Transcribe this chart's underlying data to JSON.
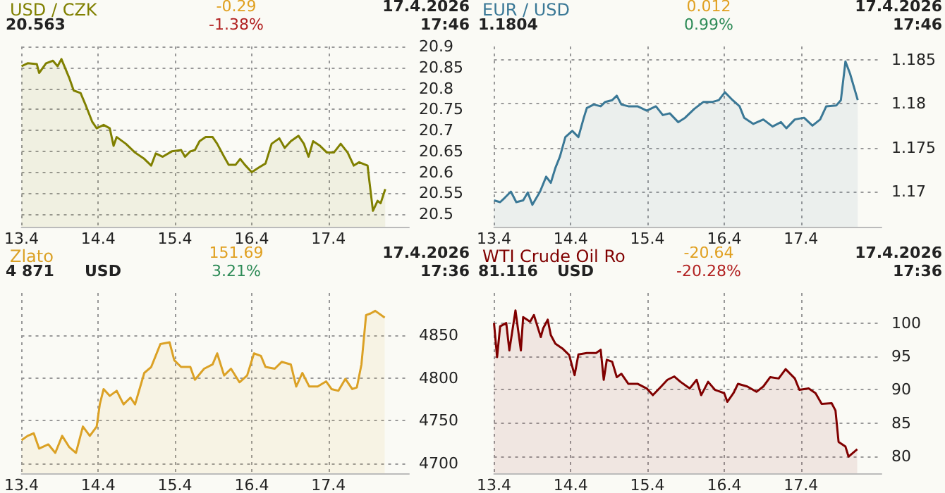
{
  "chart_data": [
    {
      "type": "area",
      "title": "USD / CZK",
      "annotations": [
        "20.563",
        "-0.29",
        "-1.38%",
        "17.4.2026",
        "17:46"
      ],
      "grid": true,
      "xlim": [
        "2026-04-13T00:00",
        "2026-04-18T01:12"
      ],
      "xticks": [
        {
          "value": "2026-04-13",
          "label": "13.4"
        },
        {
          "value": "2026-04-14",
          "label": "14.4"
        },
        {
          "value": "2026-04-15",
          "label": "15.4"
        },
        {
          "value": "2026-04-16",
          "label": "16.4"
        },
        {
          "value": "2026-04-17",
          "label": "17.4"
        }
      ],
      "ylim": [
        20.47,
        20.9
      ],
      "yticks": [
        20.5,
        20.55,
        20.6,
        20.65,
        20.7,
        20.75,
        20.8,
        20.85,
        20.9
      ],
      "series": [
        {
          "color": "#808000",
          "x": [
            "2026-04-13T00:00",
            "2026-04-13T01:55",
            "2026-04-13T04:48",
            "2026-04-13T05:31",
            "2026-04-13T07:41",
            "2026-04-13T09:50",
            "2026-04-13T11:17",
            "2026-04-13T12:29",
            "2026-04-13T14:53",
            "2026-04-13T16:19",
            "2026-04-13T18:29",
            "2026-04-13T19:55",
            "2026-04-13T22:05",
            "2026-04-13T23:31",
            "2026-04-14T01:41",
            "2026-04-14T03:36",
            "2026-04-14T04:48",
            "2026-04-14T05:46",
            "2026-04-14T08:38",
            "2026-04-14T11:31",
            "2026-04-14T14:24",
            "2026-04-14T16:34",
            "2026-04-14T18:00",
            "2026-04-14T20:10",
            "2026-04-14T23:02",
            "2026-04-15T01:55",
            "2026-04-15T03:07",
            "2026-04-15T04:48",
            "2026-04-15T06:14",
            "2026-04-15T07:41",
            "2026-04-15T09:36",
            "2026-04-15T11:46",
            "2026-04-15T13:12",
            "2026-04-15T15:22",
            "2026-04-15T16:48",
            "2026-04-15T18:58",
            "2026-04-15T20:24",
            "2026-04-15T21:50",
            "2026-04-16T00:00",
            "2026-04-16T02:10",
            "2026-04-16T04:19",
            "2026-04-16T06:14",
            "2026-04-16T08:38",
            "2026-04-16T10:19",
            "2026-04-16T12:14",
            "2026-04-16T14:38",
            "2026-04-16T16:19",
            "2026-04-16T17:46",
            "2026-04-16T19:12",
            "2026-04-16T21:22",
            "2026-04-16T23:31",
            "2026-04-17T01:41",
            "2026-04-17T03:50",
            "2026-04-17T06:00",
            "2026-04-17T07:55",
            "2026-04-17T09:36",
            "2026-04-17T12:14",
            "2026-04-17T12:43",
            "2026-04-17T13:55",
            "2026-04-17T15:22",
            "2026-04-17T16:19",
            "2026-04-17T17:46"
          ],
          "values": [
            20.853,
            20.86,
            20.858,
            20.837,
            20.86,
            20.866,
            20.853,
            20.87,
            20.826,
            20.795,
            20.789,
            20.763,
            20.721,
            20.705,
            20.713,
            20.705,
            20.663,
            20.684,
            20.668,
            20.647,
            20.632,
            20.616,
            20.645,
            20.637,
            20.65,
            20.653,
            20.637,
            20.65,
            20.653,
            20.674,
            20.684,
            20.684,
            20.668,
            20.637,
            20.618,
            20.618,
            20.632,
            20.618,
            20.6,
            20.611,
            20.621,
            20.668,
            20.681,
            20.658,
            20.674,
            20.687,
            20.668,
            20.637,
            20.674,
            20.663,
            20.647,
            20.647,
            20.668,
            20.647,
            20.616,
            20.624,
            20.616,
            20.584,
            20.508,
            20.532,
            20.526,
            20.56
          ]
        }
      ]
    },
    {
      "type": "area",
      "title": "EUR / USD",
      "annotations": [
        "1.1804",
        "0.012",
        "0.99%",
        "17.4.2026",
        "17:46"
      ],
      "grid": true,
      "xlim": [
        "2026-04-13T00:00",
        "2026-04-18T01:12"
      ],
      "xticks": [
        {
          "value": "2026-04-13",
          "label": "13.4"
        },
        {
          "value": "2026-04-14",
          "label": "14.4"
        },
        {
          "value": "2026-04-15",
          "label": "15.4"
        },
        {
          "value": "2026-04-16",
          "label": "16.4"
        },
        {
          "value": "2026-04-17",
          "label": "17.4"
        }
      ],
      "ylim": [
        1.166,
        1.1865
      ],
      "yticks": [
        1.17,
        1.175,
        1.18,
        1.185
      ],
      "series": [
        {
          "color": "#3a7896",
          "x": [
            "2026-04-13T00:00",
            "2026-04-13T01:55",
            "2026-04-13T03:22",
            "2026-04-13T05:17",
            "2026-04-13T06:58",
            "2026-04-13T09:07",
            "2026-04-13T10:34",
            "2026-04-13T12:00",
            "2026-04-13T14:24",
            "2026-04-13T16:19",
            "2026-04-13T17:46",
            "2026-04-13T19:12",
            "2026-04-13T20:38",
            "2026-04-13T22:19",
            "2026-04-14T00:29",
            "2026-04-14T02:24",
            "2026-04-14T04:05",
            "2026-04-14T05:02",
            "2026-04-14T07:12",
            "2026-04-14T09:22",
            "2026-04-14T10:48",
            "2026-04-14T12:58",
            "2026-04-14T14:24",
            "2026-04-14T15:50",
            "2026-04-14T18:00",
            "2026-04-14T20:53",
            "2026-04-14T23:46",
            "2026-04-15T02:38",
            "2026-04-15T04:48",
            "2026-04-15T06:58",
            "2026-04-15T09:36",
            "2026-04-15T11:46",
            "2026-04-15T14:38",
            "2026-04-15T17:31",
            "2026-04-15T20:24",
            "2026-04-15T22:19",
            "2026-04-16T00:14",
            "2026-04-16T02:38",
            "2026-04-16T04:48",
            "2026-04-16T06:14",
            "2026-04-16T09:07",
            "2026-04-16T12:14",
            "2026-04-16T15:07",
            "2026-04-16T17:46",
            "2026-04-16T19:26",
            "2026-04-16T22:05",
            "2026-04-17T00:58",
            "2026-04-17T03:36",
            "2026-04-17T06:00",
            "2026-04-17T07:55",
            "2026-04-17T11:02",
            "2026-04-17T12:29",
            "2026-04-17T13:55",
            "2026-04-17T15:22",
            "2026-04-17T17:46"
          ],
          "values": [
            1.169,
            1.1688,
            1.1693,
            1.17,
            1.1688,
            1.169,
            1.1699,
            1.1685,
            1.17,
            1.1717,
            1.171,
            1.1727,
            1.174,
            1.1762,
            1.1769,
            1.1762,
            1.1784,
            1.1795,
            1.1799,
            1.1797,
            1.1802,
            1.1804,
            1.1809,
            1.1799,
            1.1797,
            1.1797,
            1.1792,
            1.1797,
            1.1787,
            1.1789,
            1.1779,
            1.1784,
            1.1794,
            1.1802,
            1.1802,
            1.1804,
            1.1813,
            1.1804,
            1.1797,
            1.1784,
            1.1777,
            1.1782,
            1.1774,
            1.1779,
            1.1772,
            1.1782,
            1.1784,
            1.1775,
            1.1782,
            1.1797,
            1.1798,
            1.1804,
            1.1848,
            1.1834,
            1.1804
          ]
        }
      ]
    },
    {
      "type": "area",
      "title": "Zlato",
      "subtitle": "USD",
      "annotations": [
        "4 871",
        "151.69",
        "3.21%",
        "17.4.2026",
        "17:36"
      ],
      "grid": true,
      "xlim": [
        "2026-04-13T00:00",
        "2026-04-18T01:12"
      ],
      "xticks": [
        {
          "value": "2026-04-13",
          "label": "13.4"
        },
        {
          "value": "2026-04-14",
          "label": "14.4"
        },
        {
          "value": "2026-04-15",
          "label": "15.4"
        },
        {
          "value": "2026-04-16",
          "label": "16.4"
        },
        {
          "value": "2026-04-17",
          "label": "17.4"
        }
      ],
      "ylim": [
        4688,
        4900
      ],
      "yticks": [
        4700,
        4750,
        4800,
        4850
      ],
      "series": [
        {
          "color": "#dba125",
          "x": [
            "2026-04-13T00:00",
            "2026-04-13T01:55",
            "2026-04-13T03:50",
            "2026-04-13T05:31",
            "2026-04-13T08:24",
            "2026-04-13T10:34",
            "2026-04-13T12:43",
            "2026-04-13T14:53",
            "2026-04-13T17:02",
            "2026-04-13T19:12",
            "2026-04-13T21:22",
            "2026-04-13T23:31",
            "2026-04-14T00:29",
            "2026-04-14T01:41",
            "2026-04-14T03:36",
            "2026-04-14T05:46",
            "2026-04-14T07:55",
            "2026-04-14T10:05",
            "2026-04-14T11:31",
            "2026-04-14T14:24",
            "2026-04-14T16:34",
            "2026-04-14T19:26",
            "2026-04-14T22:19",
            "2026-04-14T23:46",
            "2026-04-15T01:55",
            "2026-04-15T04:48",
            "2026-04-15T06:14",
            "2026-04-15T09:07",
            "2026-04-15T11:46",
            "2026-04-15T13:12",
            "2026-04-15T15:22",
            "2026-04-15T17:31",
            "2026-04-15T20:10",
            "2026-04-15T22:34",
            "2026-04-16T00:43",
            "2026-04-16T02:53",
            "2026-04-16T04:19",
            "2026-04-16T07:12",
            "2026-04-16T09:22",
            "2026-04-16T12:14",
            "2026-04-16T13:55",
            "2026-04-16T15:50",
            "2026-04-16T18:00",
            "2026-04-16T20:38",
            "2026-04-16T23:17",
            "2026-04-17T00:58",
            "2026-04-17T03:07",
            "2026-04-17T05:17",
            "2026-04-17T07:26",
            "2026-04-17T08:53",
            "2026-04-17T10:19",
            "2026-04-17T11:46",
            "2026-04-17T13:12",
            "2026-04-17T14:38",
            "2026-04-17T17:36"
          ],
          "values": [
            4727,
            4732,
            4735,
            4717,
            4722,
            4712,
            4732,
            4719,
            4712,
            4743,
            4732,
            4743,
            4769,
            4787,
            4779,
            4785,
            4769,
            4777,
            4769,
            4806,
            4813,
            4840,
            4842,
            4821,
            4813,
            4813,
            4798,
            4811,
            4816,
            4829,
            4803,
            4811,
            4795,
            4803,
            4829,
            4826,
            4813,
            4811,
            4819,
            4816,
            4790,
            4806,
            4790,
            4790,
            4796,
            4787,
            4785,
            4799,
            4787,
            4789,
            4816,
            4874,
            4876,
            4879,
            4871
          ]
        }
      ]
    },
    {
      "type": "area",
      "title": "WTI Crude Oil Ro",
      "subtitle": "USD",
      "annotations": [
        "81.116",
        "-20.64",
        "-20.28%",
        "17.4.2026",
        "17:36"
      ],
      "grid": true,
      "xlim": [
        "2026-04-13T00:00",
        "2026-04-18T01:12"
      ],
      "xticks": [
        {
          "value": "2026-04-13",
          "label": "13.4"
        },
        {
          "value": "2026-04-14",
          "label": "14.4"
        },
        {
          "value": "2026-04-15",
          "label": "15.4"
        },
        {
          "value": "2026-04-16",
          "label": "16.4"
        },
        {
          "value": "2026-04-17",
          "label": "17.4"
        }
      ],
      "ylim": [
        77.5,
        104.5
      ],
      "yticks": [
        80,
        85,
        90,
        95,
        100
      ],
      "series": [
        {
          "color": "#800000",
          "x": [
            "2026-04-13T00:00",
            "2026-04-13T00:58",
            "2026-04-13T01:55",
            "2026-04-13T03:50",
            "2026-04-13T04:48",
            "2026-04-13T06:43",
            "2026-04-13T08:24",
            "2026-04-13T09:07",
            "2026-04-13T11:17",
            "2026-04-13T12:29",
            "2026-04-13T14:38",
            "2026-04-13T15:22",
            "2026-04-13T16:48",
            "2026-04-13T17:46",
            "2026-04-13T19:12",
            "2026-04-13T21:22",
            "2026-04-13T23:31",
            "2026-04-14T01:12",
            "2026-04-14T02:24",
            "2026-04-14T05:02",
            "2026-04-14T07:55",
            "2026-04-14T09:22",
            "2026-04-14T10:19",
            "2026-04-14T11:17",
            "2026-04-14T12:58",
            "2026-04-14T14:24",
            "2026-04-14T15:50",
            "2026-04-14T18:00",
            "2026-04-14T20:53",
            "2026-04-14T23:46",
            "2026-04-15T01:41",
            "2026-04-15T04:05",
            "2026-04-15T06:14",
            "2026-04-15T08:24",
            "2026-04-15T10:19",
            "2026-04-15T13:12",
            "2026-04-15T15:22",
            "2026-04-15T16:48",
            "2026-04-15T18:58",
            "2026-04-15T21:07",
            "2026-04-16T00:00",
            "2026-04-16T00:58",
            "2026-04-16T02:53",
            "2026-04-16T04:19",
            "2026-04-16T07:12",
            "2026-04-16T10:05",
            "2026-04-16T12:14",
            "2026-04-16T14:24",
            "2026-04-16T17:02",
            "2026-04-16T19:12",
            "2026-04-16T22:05",
            "2026-04-16T23:31",
            "2026-04-17T02:24",
            "2026-04-17T04:34",
            "2026-04-17T06:29",
            "2026-04-17T09:36",
            "2026-04-17T10:48",
            "2026-04-17T11:46",
            "2026-04-17T13:55",
            "2026-04-17T14:53",
            "2026-04-17T17:36"
          ],
          "values": [
            100,
            94.9,
            99.5,
            100,
            95.9,
            101.9,
            95.9,
            100.9,
            100.2,
            101.2,
            97.9,
            99.2,
            100.5,
            98.2,
            96.9,
            96.2,
            95.2,
            92.2,
            95.3,
            95.5,
            95.5,
            96,
            91.5,
            94.5,
            94.2,
            91.9,
            92.4,
            90.9,
            90.9,
            90.2,
            89.2,
            90.4,
            91.5,
            92,
            91.2,
            90.2,
            91.5,
            89.2,
            91.2,
            90,
            89.5,
            88.2,
            89.5,
            90.9,
            90.5,
            89.7,
            90.5,
            91.9,
            91.7,
            93.1,
            91.7,
            90,
            90.2,
            89.5,
            87.9,
            88,
            86.9,
            82.2,
            81.5,
            80,
            81.1
          ]
        }
      ]
    }
  ]
}
